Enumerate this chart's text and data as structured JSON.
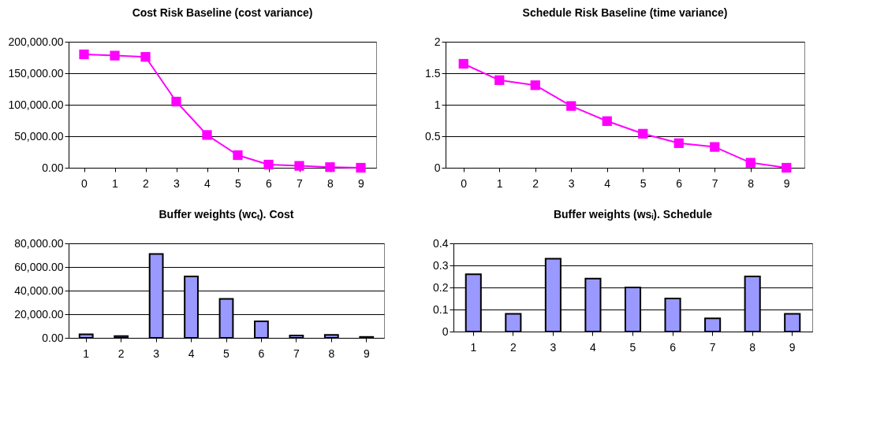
{
  "chart_data": [
    {
      "type": "line",
      "title": "Cost Risk Baseline (cost variance)",
      "categories": [
        "0",
        "1",
        "2",
        "3",
        "4",
        "5",
        "6",
        "7",
        "8",
        "9"
      ],
      "series": [
        {
          "color": "#ff00ff",
          "values": [
            180000,
            178000,
            176000,
            105000,
            52000,
            20000,
            5000,
            3000,
            1000,
            0
          ]
        }
      ],
      "ylim": [
        0,
        200000
      ],
      "yticks": [
        {
          "value": 0,
          "label": "0.00"
        },
        {
          "value": 50000,
          "label": "50,000.00"
        },
        {
          "value": 100000,
          "label": "100,000.00"
        },
        {
          "value": 150000,
          "label": "150,000.00"
        },
        {
          "value": 200000,
          "label": "200,000.00"
        }
      ],
      "grid": "y",
      "marker": "square"
    },
    {
      "type": "line",
      "title": "Schedule Risk Baseline (time variance)",
      "categories": [
        "0",
        "1",
        "2",
        "3",
        "4",
        "5",
        "6",
        "7",
        "8",
        "9"
      ],
      "series": [
        {
          "color": "#ff00ff",
          "values": [
            1.65,
            1.39,
            1.31,
            0.98,
            0.74,
            0.54,
            0.39,
            0.33,
            0.08,
            0
          ]
        }
      ],
      "ylim": [
        0,
        2
      ],
      "yticks": [
        0,
        0.5,
        1,
        1.5,
        2
      ],
      "grid": "y",
      "marker": "square"
    },
    {
      "type": "bar",
      "title": "Buffer weights (wcₜ).  Cost",
      "categories": [
        "1",
        "2",
        "3",
        "4",
        "5",
        "6",
        "7",
        "8",
        "9"
      ],
      "series": [
        {
          "color": "#9999ff",
          "values": [
            3000,
            1500,
            71000,
            52000,
            33000,
            14000,
            2000,
            2500,
            800
          ]
        }
      ],
      "ylim": [
        0,
        80000
      ],
      "yticks": [
        {
          "value": 0,
          "label": "0.00"
        },
        {
          "value": 20000,
          "label": "20,000.00"
        },
        {
          "value": 40000,
          "label": "40,000.00"
        },
        {
          "value": 60000,
          "label": "60,000.00"
        },
        {
          "value": 80000,
          "label": "80,000.00"
        }
      ],
      "grid": "y"
    },
    {
      "type": "bar",
      "title": "Buffer weights (wsᵢ). Schedule",
      "categories": [
        "1",
        "2",
        "3",
        "4",
        "5",
        "6",
        "7",
        "8",
        "9"
      ],
      "series": [
        {
          "color": "#9999ff",
          "values": [
            0.26,
            0.08,
            0.33,
            0.24,
            0.2,
            0.15,
            0.06,
            0.25,
            0.08
          ]
        }
      ],
      "ylim": [
        0,
        0.4
      ],
      "yticks": [
        0,
        0.1,
        0.2,
        0.3,
        0.4
      ],
      "grid": "y"
    }
  ]
}
